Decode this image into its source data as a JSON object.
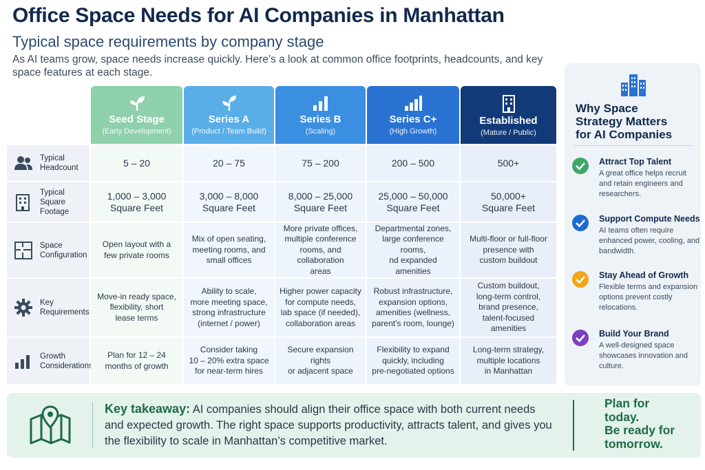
{
  "header": {
    "title": "Office Space Needs for AI Companies in Manhattan",
    "subtitle": "Typical space requirements by company stage",
    "intro": "As AI teams grow, space needs increase quickly. Here’s a look at common office footprints, headcounts, and key space features at each stage."
  },
  "colors": {
    "seed": "#8fd0ad",
    "series_a": "#5aaee8",
    "series_b": "#3b8fe0",
    "series_c": "#2a73d2",
    "established": "#123a78",
    "navy": "#12284c",
    "green": "#1d6b45"
  },
  "columns": [
    {
      "stage": "Seed Stage",
      "sub": "(Early Development)",
      "icon": "sprout-icon"
    },
    {
      "stage": "Series A",
      "sub": "(Product / Team Build)",
      "icon": "plant-icon"
    },
    {
      "stage": "Series B",
      "sub": "(Scaling)",
      "icon": "bar-chart-icon"
    },
    {
      "stage": "Series C+",
      "sub": "(High Growth)",
      "icon": "bar-chart-icon"
    },
    {
      "stage": "Established",
      "sub": "(Mature / Public)",
      "icon": "building-icon"
    }
  ],
  "rows": [
    {
      "label": "Typical\nHeadcount",
      "icon": "people-icon",
      "cells": [
        "5 – 20",
        "20 – 75",
        "75 – 200",
        "200 – 500",
        "500+"
      ]
    },
    {
      "label": "Typical\nSquare Footage",
      "icon": "office-building-icon",
      "cells": [
        "1,000 – 3,000\nSquare Feet",
        "3,000 – 8,000\nSquare Feet",
        "8,000 – 25,000\nSquare Feet",
        "25,000 – 50,000\nSquare Feet",
        "50,000+\nSquare Feet"
      ]
    },
    {
      "label": "Space\nConfiguration",
      "icon": "floor-plan-icon",
      "cells": [
        "Open layout with a\nfew private rooms",
        "Mix of open seating,\nmeeting rooms, and\nsmall offices",
        "More private offices,\nmultiple conference\nrooms, and collaboration\nareas",
        "Departmental zones,\nlarge conference rooms,\nnd expanded amenities",
        "Multi-floor or full-floor\npresence with\ncustom buildout"
      ]
    },
    {
      "label": "Key\nRequirements",
      "icon": "gear-icon",
      "cells": [
        "Move-in ready space,\nflexibility, short\nlease terms",
        "Ability to scale,\nmore meeting space,\nstrong infrastructure\n(internet / power)",
        "Higher power capacity\nfor compute needs,\nlab space (if needed),\ncollaboration areas",
        "Robust infrastructure,\nexpansion options,\namenities (wellness,\nparent’s room, lounge)",
        "Custom buildout,\nlong-term control,\nbrand presence,\ntalent-focused amenities"
      ]
    },
    {
      "label": "Growth\nConsiderations",
      "icon": "growth-chart-icon",
      "cells": [
        "Plan for 12 – 24\nmonths of growth",
        "Consider taking\n10 – 20% extra space\nfor near-term hires",
        "Secure expansion rights\nor adjacent space",
        "Flexibility to expand\nquickly, including\npre-negotiated options",
        "Long-term strategy,\nmultiple locations\nin Manhattan"
      ]
    }
  ],
  "sidebar": {
    "icon": "city-icon",
    "title": "Why Space\nStrategy Matters\nfor AI Companies",
    "points": [
      {
        "heading": "Attract Top Talent",
        "body": "A great office helps recruit and retain engineers and researchers.",
        "color": "#3fa865",
        "icon": "check-circle-icon"
      },
      {
        "heading": "Support Compute Needs",
        "body": "AI teams often require enhanced power, cooling, and bandwidth.",
        "color": "#1f6ad0",
        "icon": "check-circle-icon"
      },
      {
        "heading": "Stay Ahead of Growth",
        "body": "Flexible terms and expansion options prevent costly relocations.",
        "color": "#f2a516",
        "icon": "check-circle-icon"
      },
      {
        "heading": "Build Your Brand",
        "body": "A well-designed space showcases innovation and culture.",
        "color": "#7a3fc2",
        "icon": "check-circle-icon"
      }
    ]
  },
  "takeaway": {
    "icon": "map-pin-icon",
    "lead": "Key takeaway:",
    "text": " AI companies should align their office space with both current needs and expected growth. The right space supports productivity, attracts talent, and gives you the flexibility to scale in Manhattan’s competitive market.",
    "slogan": "Plan for\ntoday.\nBe ready for\ntomorrow."
  }
}
